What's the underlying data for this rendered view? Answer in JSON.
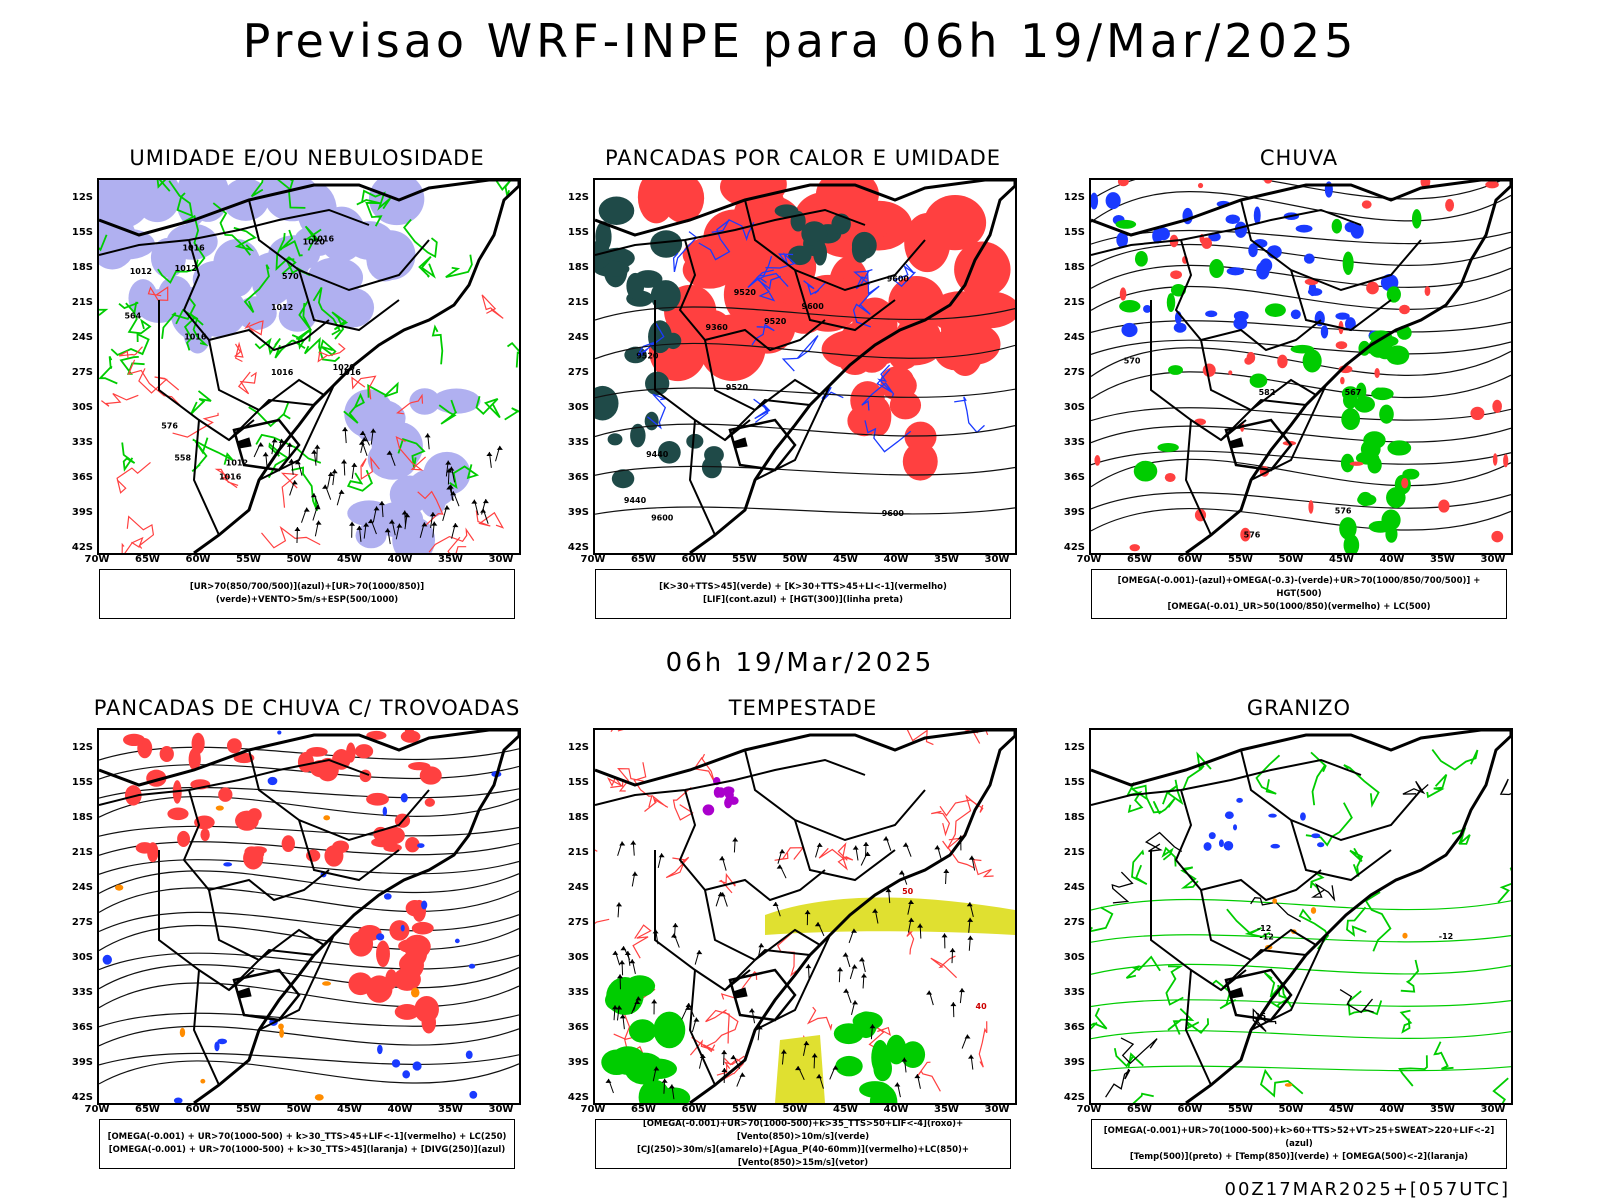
{
  "header": {
    "title": "Previsao WRF-INPE  para 06h 19/Mar/2025",
    "subtitle": "06h 19/Mar/2025",
    "footer": "00Z17MAR2025+[057UTC]"
  },
  "axes": {
    "lat_labels": [
      "12S",
      "15S",
      "18S",
      "21S",
      "24S",
      "27S",
      "30S",
      "33S",
      "36S",
      "39S",
      "42S"
    ],
    "lon_labels": [
      "70W",
      "65W",
      "60W",
      "55W",
      "50W",
      "45W",
      "40W",
      "35W",
      "30W"
    ]
  },
  "colors": {
    "blue_humidity": "#b0b0f0",
    "green_contour": "#00cc00",
    "red_field": "#ff4040",
    "dark_teal": "#1f4a48",
    "yellow_jet": "#e0e030",
    "orange": "#ff8c00",
    "purple": "#aa00cc",
    "blue_line": "#1a3aff"
  },
  "panels": [
    {
      "title": "UMIDADE E/OU NEBULOSIDADE",
      "legend": [
        "[UR>70(850/700/500)](azul)+[UR>70(1000/850)](verde)+VENTO>5m/s+ESP(500/1000)"
      ],
      "contour_labels": [
        "1012",
        "1012",
        "1012",
        "1012",
        "1020",
        "1016",
        "1016",
        "1016",
        "1016",
        "1016",
        "1020",
        "1016",
        "570",
        "576",
        "564",
        "558"
      ]
    },
    {
      "title": "PANCADAS POR CALOR E UMIDADE",
      "legend": [
        "[K>30+TTS>45](verde) + [K>30+TTS>45+LI<-1](vermelho)",
        "[LIF](cont.azul) + [HGT(300)](linha preta)"
      ],
      "contour_labels": [
        "9600",
        "9520",
        "9600",
        "9520",
        "9600",
        "9600",
        "9520",
        "9520",
        "9440",
        "9360",
        "9440"
      ]
    },
    {
      "title": "CHUVA",
      "legend": [
        "[OMEGA(-0.001)-(azul)+OMEGA(-0.3)-(verde)+UR>70(1000/850/700/500)] + HGT(500)",
        "[OMEGA(-0.01)_UR>50(1000/850)(vermelho) + LC(500)"
      ],
      "contour_labels": [
        "582",
        "576",
        "570",
        "567",
        "576"
      ]
    },
    {
      "title": "PANCADAS DE CHUVA C/ TROVOADAS",
      "legend": [
        "[OMEGA(-0.001) + UR>70(1000-500) + k>30_TTS>45+LIF<-1](vermelho) + LC(250)",
        "[OMEGA(-0.001) + UR>70(1000-500) + k>30_TTS>45](laranja) + [DIVG(250)](azul)"
      ],
      "contour_labels": []
    },
    {
      "title": "TEMPESTADE",
      "legend": [
        "[OMEGA(-0.001)+UR>70(1000-500)+k>35_TTS>50+LIF<-4](roxo)+[Vento(850)>10m/s](verde)",
        "[CJ(250)>30m/s](amarelo)+[Agua_P(40-60mm)](vermelho)+LC(850)+[Vento(850)>15m/s](vetor)"
      ],
      "contour_labels": [
        "50",
        "40"
      ]
    },
    {
      "title": "GRANIZO",
      "legend": [
        "[OMEGA(-0.001)+UR>70(1000-500)+k>60+TTS>52+VT>25+SWEAT>220+LIF<-2](azul)",
        "[Temp(500)](preto) + [Temp(850)](verde) + [OMEGA(500)<-2](laranja)"
      ],
      "contour_labels": [
        "-12",
        "-12",
        "-15",
        "-12"
      ]
    }
  ]
}
